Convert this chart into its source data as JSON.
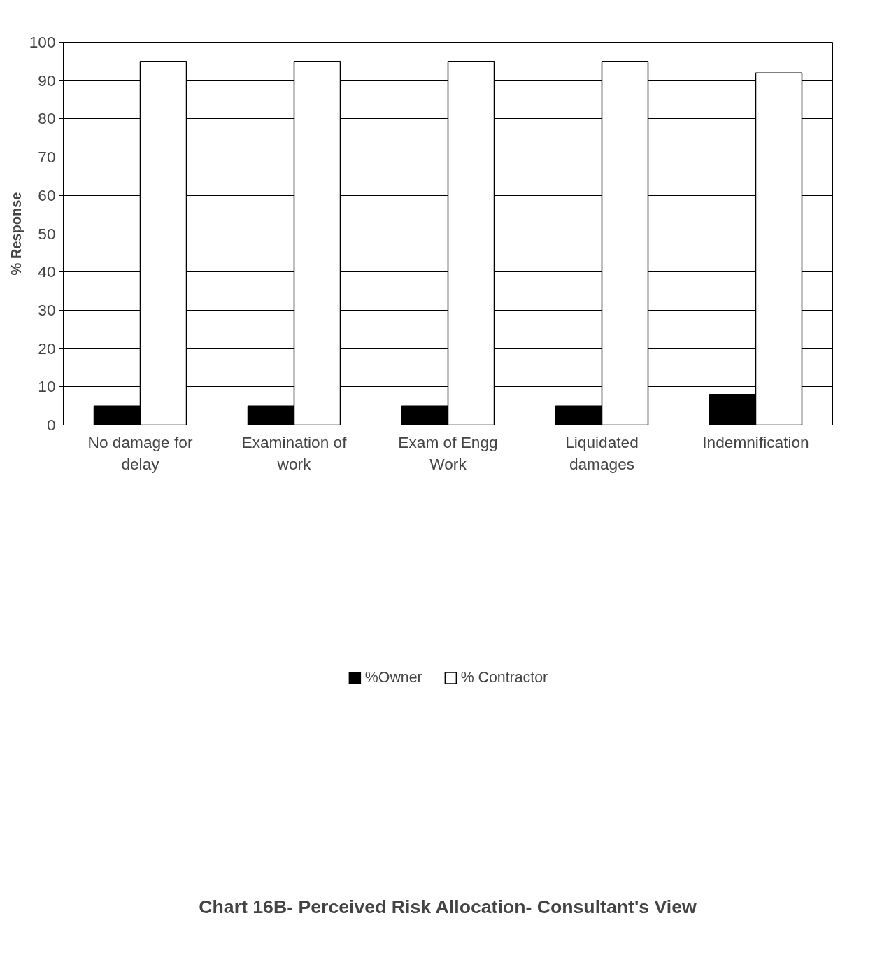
{
  "chart_data": {
    "type": "bar",
    "title": "Chart 16B- Perceived Risk Allocation- Consultant's View",
    "ylabel": "% Response",
    "categories": [
      "No damage for delay",
      "Examination of work",
      "Exam of Engg Work",
      "Liquidated damages",
      "Indemnification"
    ],
    "series": [
      {
        "name": "%Owner",
        "color": "#000000",
        "values": [
          5,
          5,
          5,
          5,
          8
        ]
      },
      {
        "name": "% Contractor",
        "color": "#ffffff",
        "values": [
          95,
          95,
          95,
          95,
          92
        ]
      }
    ],
    "ylim": [
      0,
      100
    ],
    "yticks": [
      0,
      10,
      20,
      30,
      40,
      50,
      60,
      70,
      80,
      90,
      100
    ],
    "grid": "y",
    "legend": "bottom"
  }
}
